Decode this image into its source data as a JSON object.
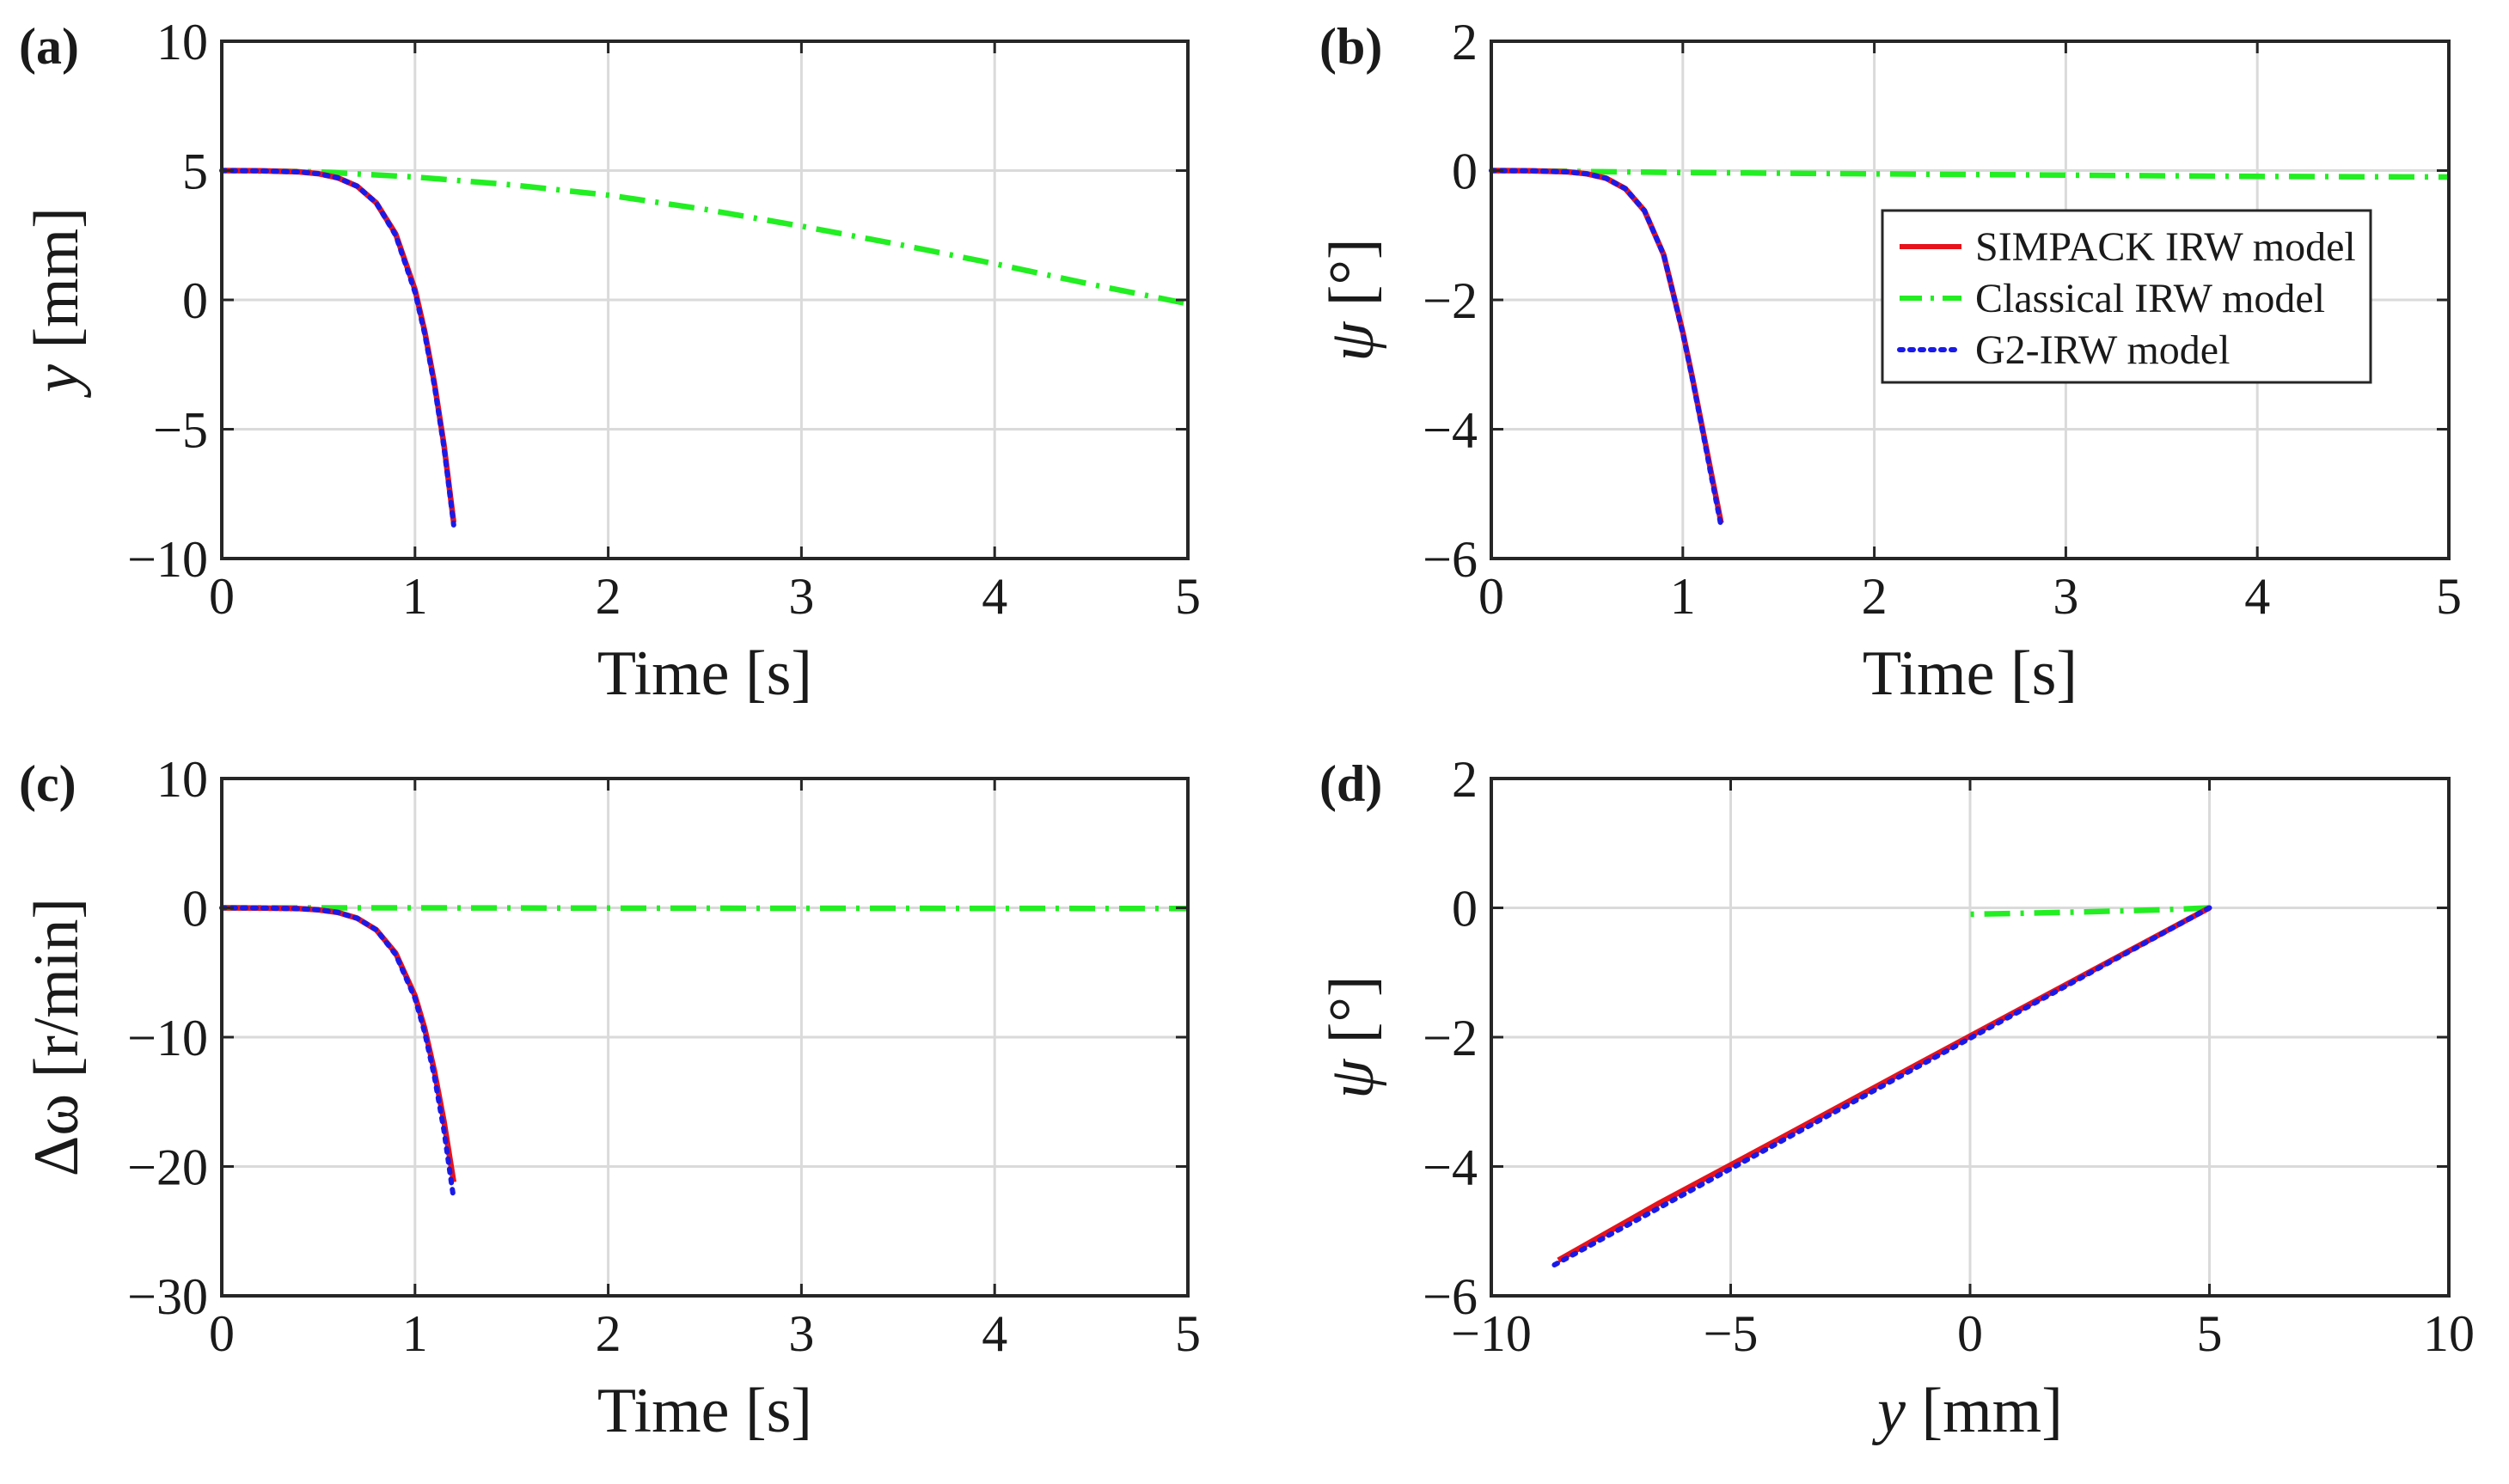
{
  "figure": {
    "legend": {
      "location": "upper-right of panel (b)",
      "entries": [
        {
          "name": "SIMPACK IRW model",
          "color": "#e8121a",
          "style": "solid"
        },
        {
          "name": "Classical IRW model",
          "color": "#22ee22",
          "style": "dash-dot"
        },
        {
          "name": "G2-IRW model",
          "color": "#1a1ae8",
          "style": "dotted"
        }
      ]
    }
  },
  "chart_data": [
    {
      "id": "a",
      "type": "line",
      "panel_label": "(a)",
      "xlabel": "Time [s]",
      "ylabel_symbol": "y",
      "ylabel_unit": " [mm]",
      "xlim": [
        0,
        5
      ],
      "ylim": [
        -10,
        10
      ],
      "xticks": [
        0,
        1,
        2,
        3,
        4,
        5
      ],
      "yticks": [
        -10,
        -5,
        0,
        5,
        10
      ],
      "xtick_labels": [
        "0",
        "1",
        "2",
        "3",
        "4",
        "5"
      ],
      "ytick_labels": [
        "−10",
        "−5",
        "0",
        "5",
        "10"
      ],
      "grid": true,
      "series": [
        {
          "name": "SIMPACK IRW model",
          "x": [
            0,
            0.2,
            0.4,
            0.5,
            0.6,
            0.7,
            0.8,
            0.9,
            1.0,
            1.05,
            1.1,
            1.15,
            1.2
          ],
          "y": [
            5,
            4.99,
            4.95,
            4.88,
            4.72,
            4.4,
            3.75,
            2.55,
            0.4,
            -1.2,
            -3.2,
            -5.6,
            -8.6
          ]
        },
        {
          "name": "G2-IRW model",
          "x": [
            0,
            0.2,
            0.4,
            0.5,
            0.6,
            0.7,
            0.8,
            0.9,
            1.0,
            1.05,
            1.1,
            1.15,
            1.2
          ],
          "y": [
            5,
            4.99,
            4.95,
            4.88,
            4.72,
            4.4,
            3.75,
            2.5,
            0.3,
            -1.3,
            -3.3,
            -5.7,
            -8.7
          ]
        },
        {
          "name": "Classical IRW model",
          "x": [
            0,
            0.5,
            1,
            1.5,
            2,
            2.5,
            3,
            3.5,
            4,
            4.5,
            5
          ],
          "y": [
            5,
            4.95,
            4.75,
            4.45,
            4.05,
            3.5,
            2.85,
            2.15,
            1.4,
            0.6,
            -0.15
          ]
        }
      ]
    },
    {
      "id": "b",
      "type": "line",
      "panel_label": "(b)",
      "xlabel": "Time [s]",
      "ylabel_symbol": "ψ",
      "ylabel_unit": " [°]",
      "xlim": [
        0,
        5
      ],
      "ylim": [
        -6,
        2
      ],
      "xticks": [
        0,
        1,
        2,
        3,
        4,
        5
      ],
      "yticks": [
        -6,
        -4,
        -2,
        0,
        2
      ],
      "xtick_labels": [
        "0",
        "1",
        "2",
        "3",
        "4",
        "5"
      ],
      "ytick_labels": [
        "−6",
        "−4",
        "−2",
        "0",
        "2"
      ],
      "grid": true,
      "series": [
        {
          "name": "SIMPACK IRW model",
          "x": [
            0,
            0.2,
            0.4,
            0.5,
            0.6,
            0.7,
            0.8,
            0.9,
            1.0,
            1.05,
            1.1,
            1.15,
            1.2
          ],
          "y": [
            0,
            -0.003,
            -0.02,
            -0.05,
            -0.12,
            -0.28,
            -0.62,
            -1.3,
            -2.5,
            -3.2,
            -3.95,
            -4.7,
            -5.45
          ]
        },
        {
          "name": "G2-IRW model",
          "x": [
            0,
            0.2,
            0.4,
            0.5,
            0.6,
            0.7,
            0.8,
            0.9,
            1.0,
            1.05,
            1.1,
            1.15,
            1.2
          ],
          "y": [
            0,
            -0.003,
            -0.02,
            -0.05,
            -0.12,
            -0.28,
            -0.62,
            -1.3,
            -2.52,
            -3.22,
            -3.98,
            -4.75,
            -5.5
          ]
        },
        {
          "name": "Classical IRW model",
          "x": [
            0,
            1,
            2,
            3,
            4,
            5
          ],
          "y": [
            0,
            -0.03,
            -0.05,
            -0.07,
            -0.09,
            -0.1
          ]
        }
      ]
    },
    {
      "id": "c",
      "type": "line",
      "panel_label": "(c)",
      "xlabel": "Time [s]",
      "ylabel_symbol": "Δω",
      "ylabel_unit": " [r/min]",
      "xlim": [
        0,
        5
      ],
      "ylim": [
        -30,
        10
      ],
      "xticks": [
        0,
        1,
        2,
        3,
        4,
        5
      ],
      "yticks": [
        -30,
        -20,
        -10,
        0,
        10
      ],
      "xtick_labels": [
        "0",
        "1",
        "2",
        "3",
        "4",
        "5"
      ],
      "ytick_labels": [
        "−30",
        "−20",
        "−10",
        "0",
        "10"
      ],
      "grid": true,
      "series": [
        {
          "name": "SIMPACK IRW model",
          "x": [
            0,
            0.2,
            0.4,
            0.5,
            0.6,
            0.7,
            0.8,
            0.9,
            1.0,
            1.05,
            1.1,
            1.15,
            1.2
          ],
          "y": [
            0,
            -0.01,
            -0.06,
            -0.15,
            -0.35,
            -0.8,
            -1.7,
            -3.5,
            -6.8,
            -9.3,
            -12.6,
            -16.5,
            -21.2
          ]
        },
        {
          "name": "G2-IRW model",
          "x": [
            0,
            0.2,
            0.4,
            0.5,
            0.6,
            0.7,
            0.8,
            0.9,
            1.0,
            1.05,
            1.1,
            1.15,
            1.2
          ],
          "y": [
            0,
            -0.01,
            -0.06,
            -0.15,
            -0.35,
            -0.8,
            -1.7,
            -3.6,
            -7.0,
            -9.6,
            -13.0,
            -17.2,
            -22.5
          ]
        },
        {
          "name": "Classical IRW model",
          "x": [
            0,
            1,
            2,
            3,
            4,
            5
          ],
          "y": [
            0,
            0,
            -0.02,
            -0.03,
            -0.04,
            -0.05
          ]
        }
      ]
    },
    {
      "id": "d",
      "type": "line",
      "panel_label": "(d)",
      "xlabel_symbol": "y",
      "xlabel_unit": " [mm]",
      "ylabel_symbol": "ψ",
      "ylabel_unit": " [°]",
      "xlim": [
        -10,
        10
      ],
      "ylim": [
        -6,
        2
      ],
      "xticks": [
        -10,
        -5,
        0,
        5,
        10
      ],
      "yticks": [
        -6,
        -4,
        -2,
        0,
        2
      ],
      "xtick_labels": [
        "−10",
        "−5",
        "0",
        "5",
        "10"
      ],
      "ytick_labels": [
        "−6",
        "−4",
        "−2",
        "0",
        "2"
      ],
      "grid": true,
      "series": [
        {
          "name": "SIMPACK IRW model",
          "x": [
            5,
            2,
            -1,
            -4,
            -6.5,
            -8.6
          ],
          "y": [
            0,
            -1.19,
            -2.38,
            -3.58,
            -4.57,
            -5.45
          ]
        },
        {
          "name": "G2-IRW model",
          "x": [
            5,
            2,
            -1,
            -4,
            -6.5,
            -8.7
          ],
          "y": [
            0,
            -1.21,
            -2.42,
            -3.63,
            -4.64,
            -5.53
          ]
        },
        {
          "name": "Classical IRW model",
          "x": [
            5,
            4,
            3,
            2,
            1,
            0,
            -0.1
          ],
          "y": [
            0,
            -0.03,
            -0.05,
            -0.07,
            -0.085,
            -0.1,
            -0.1
          ]
        }
      ]
    }
  ]
}
